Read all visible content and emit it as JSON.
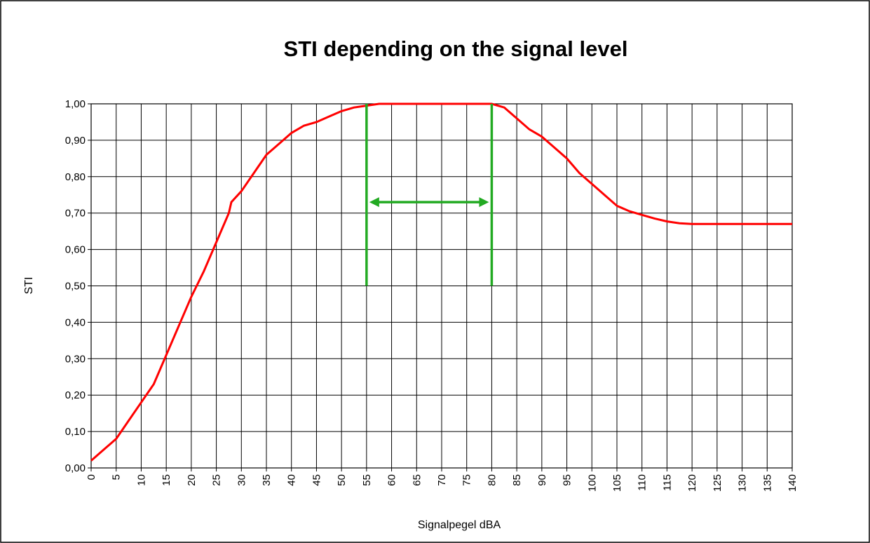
{
  "chart_data": {
    "type": "line",
    "title": "STI depending on the signal level",
    "xlabel": "Signalpegel dBA",
    "ylabel": "STI",
    "color": "#ff0000",
    "x": [
      0,
      2.5,
      5,
      6,
      7.5,
      10,
      12.5,
      15,
      17.5,
      20,
      22.5,
      25,
      27.5,
      28,
      30,
      32.5,
      35,
      37.5,
      40,
      42.5,
      45,
      47.5,
      50,
      52.5,
      55,
      57.5,
      60,
      65,
      70,
      75,
      80,
      82.5,
      85,
      87.5,
      90,
      92.5,
      95,
      97.5,
      100,
      102.5,
      105,
      107.5,
      110,
      112.5,
      115,
      117.5,
      120,
      130,
      140
    ],
    "values": [
      0.02,
      0.05,
      0.08,
      0.1,
      0.13,
      0.18,
      0.23,
      0.31,
      0.39,
      0.47,
      0.54,
      0.62,
      0.7,
      0.73,
      0.76,
      0.81,
      0.86,
      0.89,
      0.92,
      0.94,
      0.95,
      0.965,
      0.98,
      0.99,
      0.995,
      1.0,
      1.0,
      1.0,
      1.0,
      1.0,
      1.0,
      0.99,
      0.96,
      0.93,
      0.91,
      0.88,
      0.85,
      0.81,
      0.78,
      0.75,
      0.72,
      0.705,
      0.695,
      0.685,
      0.677,
      0.672,
      0.67,
      0.67,
      0.67
    ],
    "xlim": [
      0,
      140
    ],
    "xticks": [
      0,
      5,
      10,
      15,
      20,
      25,
      30,
      35,
      40,
      45,
      50,
      55,
      60,
      65,
      70,
      75,
      80,
      85,
      90,
      95,
      100,
      105,
      110,
      115,
      120,
      125,
      130,
      135,
      140
    ],
    "ylim": [
      0,
      1
    ],
    "yticks": [
      {
        "value": 0,
        "label": "0,00"
      },
      {
        "value": 0.1,
        "label": "0,10"
      },
      {
        "value": 0.2,
        "label": "0,20"
      },
      {
        "value": 0.3,
        "label": "0,30"
      },
      {
        "value": 0.4,
        "label": "0,40"
      },
      {
        "value": 0.5,
        "label": "0,50"
      },
      {
        "value": 0.6,
        "label": "0,60"
      },
      {
        "value": 0.7,
        "label": "0,70"
      },
      {
        "value": 0.8,
        "label": "0,80"
      },
      {
        "value": 0.9,
        "label": "0,90"
      },
      {
        "value": 1,
        "label": "1,00"
      }
    ],
    "grid": true,
    "marker_color": "#22aa22",
    "vlines": [
      {
        "x": 55,
        "y": [
          0.5,
          1
        ]
      },
      {
        "x": 80,
        "y": [
          0.5,
          1
        ]
      }
    ],
    "arrow": {
      "x": [
        55,
        80
      ],
      "y": 0.73
    }
  }
}
